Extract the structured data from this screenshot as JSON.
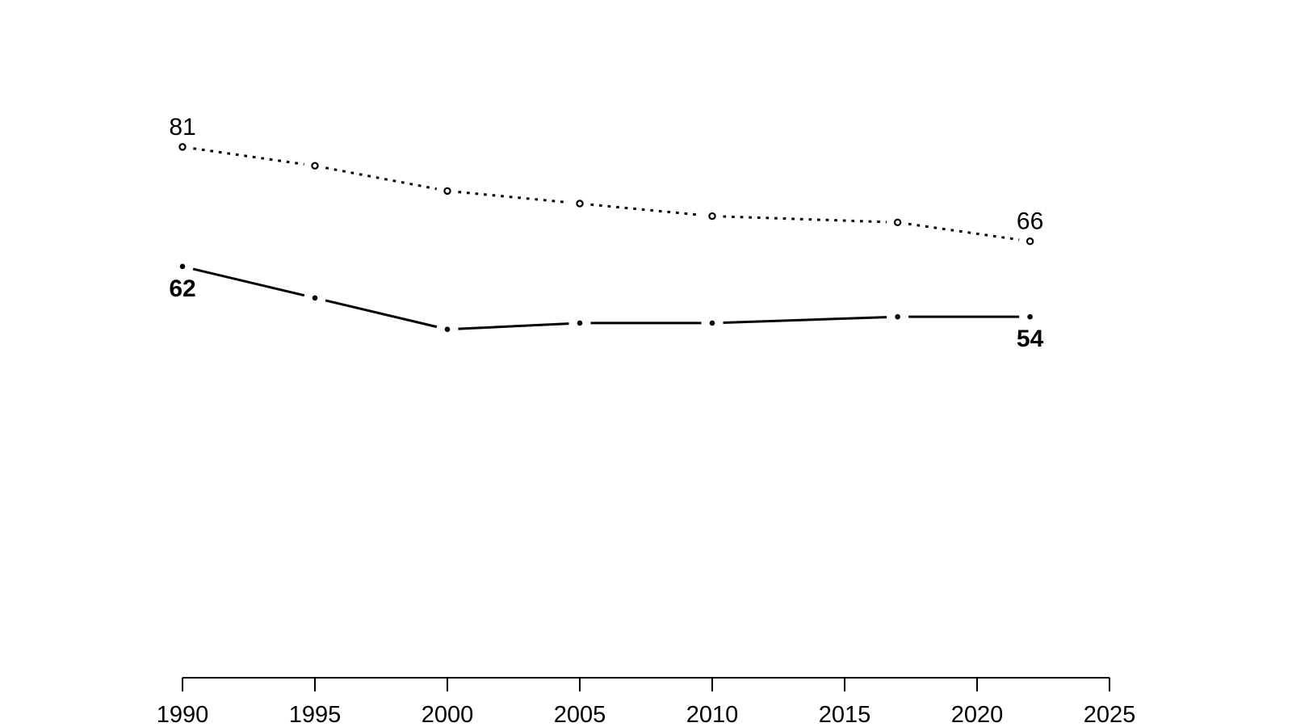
{
  "figure": {
    "title": "",
    "background_color": "#ffffff",
    "foreground_color": "#000000"
  },
  "chart_data": {
    "type": "line",
    "title": "",
    "xlabel": "",
    "ylabel": "",
    "x": [
      1990,
      1995,
      2000,
      2005,
      2010,
      2017,
      2022
    ],
    "series": [
      {
        "name": "upper-dotted-series",
        "values": [
          81,
          78,
          74,
          72,
          70,
          69,
          66
        ],
        "line_style": "dotted",
        "marker": "open-circle",
        "color": "#000000",
        "first_label": "81",
        "last_label": "66",
        "label_position": "above",
        "label_bold": false
      },
      {
        "name": "lower-solid-series",
        "values": [
          62,
          57,
          52,
          53,
          53,
          54,
          54
        ],
        "line_style": "solid",
        "marker": "filled-circle",
        "color": "#000000",
        "first_label": "62",
        "last_label": "54",
        "label_position": "below",
        "label_bold": true
      }
    ],
    "x_ticks": [
      1990,
      1995,
      2000,
      2005,
      2010,
      2015,
      2020,
      2025
    ],
    "x_tick_labels": [
      "1990",
      "1995",
      "2000",
      "2005",
      "2010",
      "2015",
      "2020",
      "2025"
    ],
    "xlim": [
      1990,
      2025
    ],
    "ylim": [
      0,
      104
    ],
    "grid": false,
    "legend": "none",
    "y_axis_drawn": false,
    "point_gap_in_line": true
  }
}
